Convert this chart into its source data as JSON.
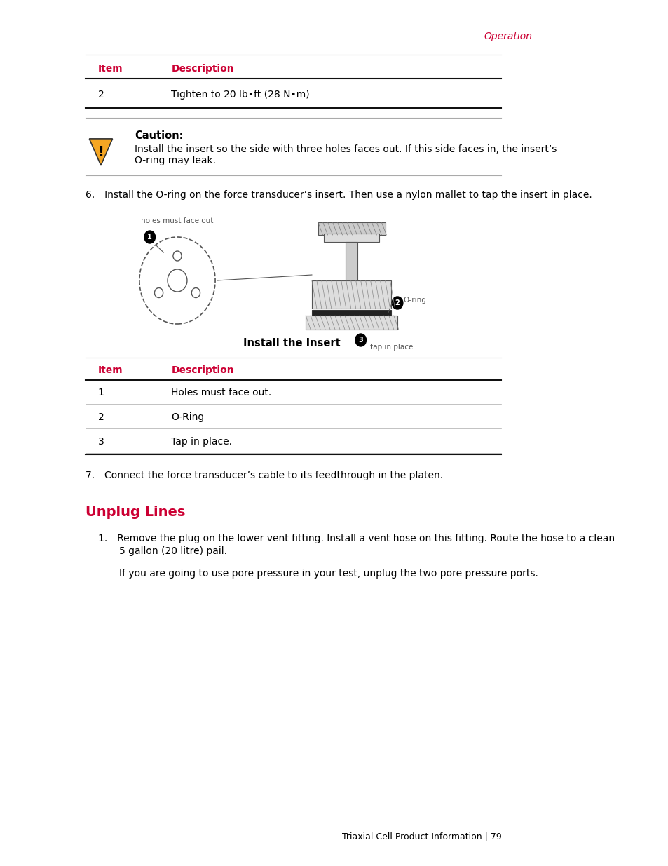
{
  "bg_color": "#ffffff",
  "text_color": "#000000",
  "red_color": "#cc0033",
  "header_red": "#cc0033",
  "page_width": 9.54,
  "page_height": 12.35,
  "top_label": "Operation",
  "table1_header_item": "Item",
  "table1_header_desc": "Description",
  "table1_row1_item": "2",
  "table1_row1_desc": "Tighten to 20 lb•ft (28 N•m)",
  "caution_title": "Caution:",
  "caution_body1": "Install the insert so the side with three holes faces out. If this side faces in, the insert’s",
  "caution_body2": "O-ring may leak.",
  "step6_text": "6. Install the O-ring on the force transducer’s insert. Then use a nylon mallet to tap the insert in place.",
  "diagram_caption": "Install the Insert",
  "label_holes": "holes must face out",
  "label_oring": "O-ring",
  "label_tap": "tap in place",
  "table2_header_item": "Item",
  "table2_header_desc": "Description",
  "table2_rows": [
    [
      "1",
      "Holes must face out."
    ],
    [
      "2",
      "O-Ring"
    ],
    [
      "3",
      "Tap in place."
    ]
  ],
  "step7_text": "7. Connect the force transducer’s cable to its feedthrough in the platen.",
  "section_title": "Unplug Lines",
  "step1_text1": "1. Remove the plug on the lower vent fitting. Install a vent hose on this fitting. Route the hose to a clean",
  "step1_text2": "5 gallon (20 litre) pail.",
  "step1_text3": "If you are going to use pore pressure in your test, unplug the two pore pressure ports.",
  "footer_text": "Triaxial Cell Product Information | 79"
}
